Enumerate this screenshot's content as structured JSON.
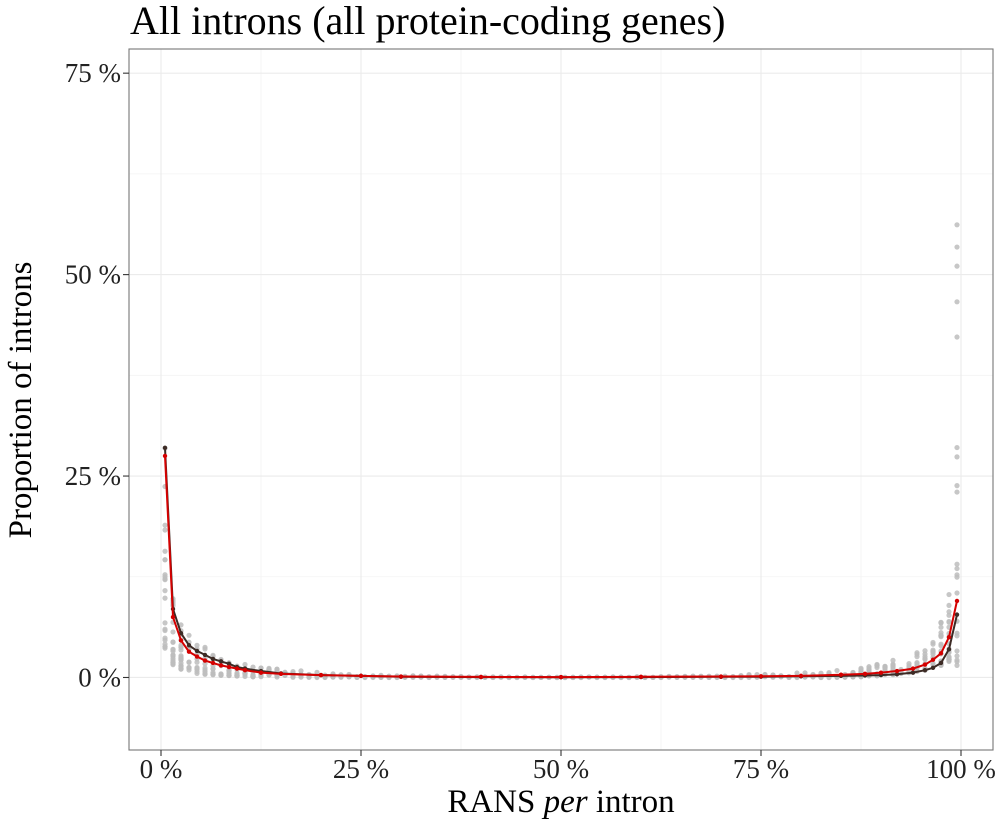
{
  "chart_data": {
    "type": "line",
    "title": "All introns (all protein-coding genes)",
    "xlabel": {
      "main": "RANS",
      "italic": "per",
      "rest": "intron"
    },
    "ylabel": "Proportion of introns",
    "xlim": [
      -4,
      104
    ],
    "ylim": [
      -9,
      78
    ],
    "x_ticks": [
      0,
      25,
      50,
      75,
      100
    ],
    "x_tick_labels": [
      "0 %",
      "25 %",
      "50 %",
      "75 %",
      "100 %"
    ],
    "y_ticks": [
      0,
      25,
      50,
      75
    ],
    "y_tick_labels": [
      "0 %",
      "25 %",
      "50 %",
      "75 %"
    ],
    "grid": true,
    "colors": {
      "individual": "#bdbdbd",
      "dark_series": "#3d2b25",
      "red_series": "#d40000"
    },
    "background_series_spread": {
      "x": [
        0.5,
        1.5,
        2.5,
        3.5,
        4.5,
        5.5,
        7,
        9,
        11,
        14,
        18,
        22,
        30,
        40,
        50,
        60,
        70,
        78,
        84,
        88,
        91,
        93,
        95,
        96.5,
        97.5,
        98.5,
        99.5
      ],
      "min": [
        3.5,
        1.5,
        1.0,
        0.8,
        0.5,
        0.4,
        0.3,
        0.2,
        0.1,
        0.05,
        0,
        0,
        0,
        0,
        0,
        0,
        0,
        0,
        0,
        0.1,
        0.3,
        0.5,
        0.8,
        1.0,
        1.5,
        2.0,
        1.5
      ],
      "max": [
        35,
        10,
        7,
        5.5,
        4.5,
        3.8,
        3.0,
        2.2,
        1.7,
        1.1,
        0.8,
        0.5,
        0.25,
        0.1,
        0.05,
        0.1,
        0.3,
        0.5,
        0.8,
        1.3,
        2.0,
        2.6,
        3.5,
        5,
        7,
        12,
        59
      ]
    },
    "series": [
      {
        "x": [
          0.5,
          1.5,
          2.5,
          3.5,
          4.5,
          5.5,
          6.5,
          7.5,
          8.5,
          9.5,
          10.5,
          12.5,
          15,
          20,
          25,
          30,
          40,
          50,
          60,
          70,
          75,
          80,
          85,
          88,
          90,
          92,
          94,
          95.5,
          96.5,
          97.5,
          98.5,
          99.5
        ],
        "values": [
          28.5,
          8.5,
          5.5,
          4.0,
          3.3,
          2.8,
          2.3,
          2.0,
          1.7,
          1.3,
          1.1,
          0.8,
          0.5,
          0.3,
          0.2,
          0.1,
          0.05,
          0.03,
          0.05,
          0.08,
          0.1,
          0.15,
          0.2,
          0.25,
          0.3,
          0.4,
          0.6,
          0.9,
          1.2,
          1.8,
          3.5,
          7.8
        ]
      },
      {
        "x": [
          0.5,
          1.5,
          2.5,
          3.5,
          4.5,
          5.5,
          6.5,
          7.5,
          8.5,
          9.5,
          10.5,
          12.5,
          15,
          20,
          25,
          30,
          40,
          50,
          60,
          70,
          75,
          80,
          85,
          88,
          90,
          92,
          94,
          95.5,
          96.5,
          97.5,
          98.5,
          99.5
        ],
        "values": [
          27.5,
          7.5,
          4.6,
          3.2,
          2.6,
          2.1,
          1.8,
          1.5,
          1.3,
          1.1,
          0.9,
          0.6,
          0.45,
          0.3,
          0.2,
          0.12,
          0.07,
          0.05,
          0.08,
          0.12,
          0.15,
          0.2,
          0.35,
          0.45,
          0.6,
          0.8,
          1.1,
          1.6,
          2.2,
          3.0,
          5.0,
          9.5
        ]
      }
    ]
  }
}
